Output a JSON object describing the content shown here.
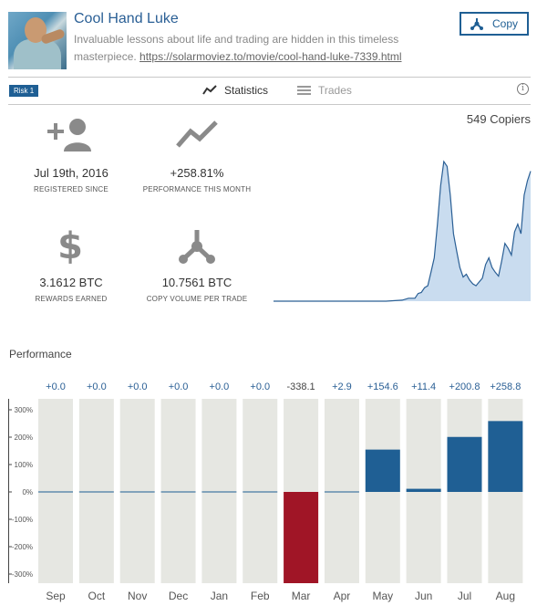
{
  "profile": {
    "name": "Cool Hand Luke",
    "description": "Invaluable lessons about life and trading are hidden in this timeless masterpiece.",
    "link": "https://solarmoviez.to/movie/cool-hand-luke-7339.html"
  },
  "copy_button": {
    "label": "Copy",
    "icon": "copy-share-icon"
  },
  "risk_badge": "Risk 1",
  "tabs": [
    {
      "label": "Statistics",
      "icon": "line-chart-icon",
      "active": true
    },
    {
      "label": "Trades",
      "icon": "list-icon",
      "active": false
    }
  ],
  "copiers": "549 Copiers",
  "stats": [
    {
      "value": "Jul 19th, 2016",
      "label": "REGISTERED SINCE",
      "icon": "add-user-icon"
    },
    {
      "value": "+258.81%",
      "label": "PERFORMANCE THIS MONTH",
      "icon": "trend-icon"
    },
    {
      "value": "3.1612 BTC",
      "label": "REWARDS EARNED",
      "icon": "dollar-icon"
    },
    {
      "value": "10.7561 BTC",
      "label": "COPY VOLUME PER TRADE",
      "icon": "copy-share-icon"
    }
  ],
  "colors": {
    "accent": "#1f5f94",
    "negative": "#a01526",
    "bar_bg": "#e6e7e2",
    "area_fill": "#c9dcef",
    "area_line": "#2a5f95"
  },
  "chart_data": [
    {
      "type": "area",
      "x": [
        0,
        5,
        10,
        15,
        20,
        25,
        30,
        35,
        40,
        42,
        44,
        45,
        46,
        47,
        48,
        49,
        50,
        51,
        52,
        53,
        54,
        55,
        56,
        57,
        58,
        59,
        60,
        61,
        62,
        63,
        64,
        65,
        66,
        67,
        68,
        69,
        70,
        71,
        72,
        73,
        74,
        75,
        76,
        77,
        78,
        79,
        80
      ],
      "values": [
        0,
        0,
        0,
        0,
        0,
        0,
        0,
        0,
        1,
        3,
        3,
        8,
        9,
        14,
        16,
        30,
        45,
        80,
        120,
        145,
        140,
        110,
        70,
        52,
        35,
        25,
        28,
        22,
        18,
        16,
        20,
        24,
        38,
        45,
        35,
        30,
        26,
        42,
        60,
        55,
        48,
        72,
        80,
        70,
        110,
        125,
        135
      ]
    },
    {
      "type": "bar",
      "title": "Performance",
      "categories": [
        "Sep",
        "Oct",
        "Nov",
        "Dec",
        "Jan",
        "Feb",
        "Mar",
        "Apr",
        "May",
        "Jun",
        "Jul",
        "Aug"
      ],
      "values": [
        0.0,
        0.0,
        0.0,
        0.0,
        0.0,
        0.0,
        -338.1,
        2.9,
        154.6,
        11.4,
        200.8,
        258.8
      ],
      "labels": [
        "+0.0",
        "+0.0",
        "+0.0",
        "+0.0",
        "+0.0",
        "+0.0",
        "-338.1",
        "+2.9",
        "+154.6",
        "+11.4",
        "+200.8",
        "+258.8"
      ],
      "ylim": [
        -300,
        300
      ],
      "yticks": [
        "300%",
        "200%",
        "100%",
        "0%",
        "-100%",
        "-200%",
        "-300%"
      ],
      "ytick_values": [
        300,
        200,
        100,
        0,
        -100,
        -200,
        -300
      ],
      "grid": false
    }
  ]
}
